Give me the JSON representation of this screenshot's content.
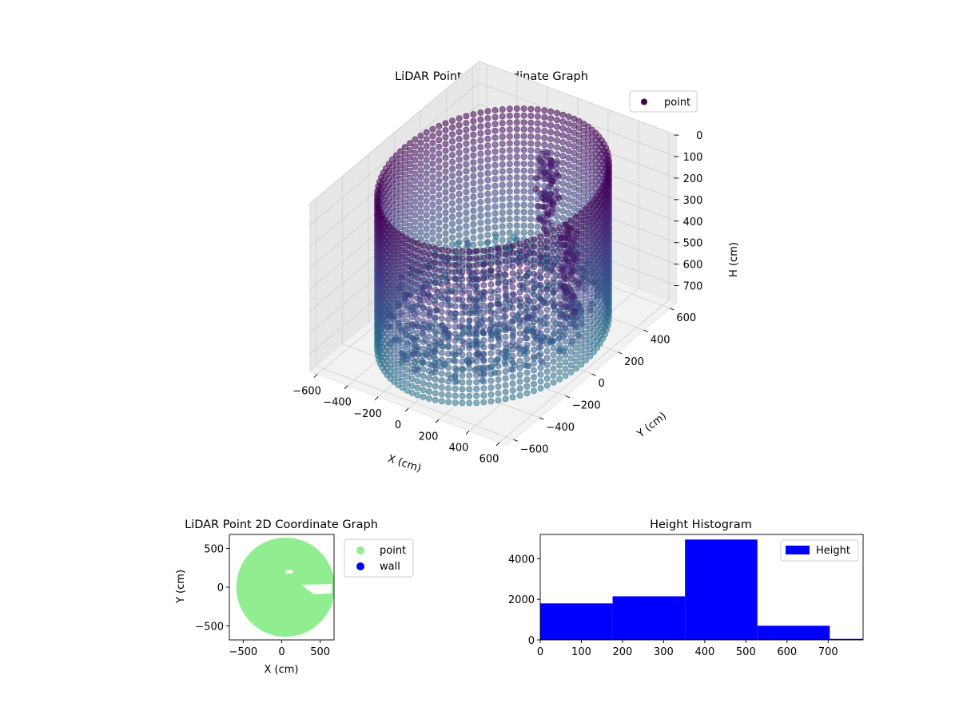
{
  "chart_data": [
    {
      "type": "scatter3d",
      "title": "LiDAR Point 3D Coordinate Graph",
      "xlabel": "X (cm)",
      "ylabel": "Y (cm)",
      "zlabel": "H (cm)",
      "x_ticks": [
        -600,
        -400,
        -200,
        0,
        200,
        400,
        600
      ],
      "y_ticks": [
        -600,
        -400,
        -200,
        0,
        200,
        400,
        600
      ],
      "z_ticks": [
        0,
        100,
        200,
        300,
        400,
        500,
        600,
        700
      ],
      "xlim": [
        -650,
        650
      ],
      "ylim": [
        -650,
        650
      ],
      "zlim": [
        0,
        780
      ],
      "z_inverted": true,
      "grid": true,
      "legend": {
        "placement": "upper-right",
        "entries": [
          {
            "label": "point",
            "color": "#440154"
          }
        ]
      },
      "colormap": "viridis",
      "shape": {
        "wall_radius": 580,
        "wall_height_range": [
          50,
          780
        ],
        "floor_height": 700,
        "objects": [
          {
            "x": 100,
            "y": 300,
            "z_range": [
              60,
              400
            ]
          },
          {
            "x": 430,
            "y": 80,
            "z_range": [
              200,
              650
            ]
          }
        ]
      }
    },
    {
      "type": "scatter",
      "title": "LiDAR Point 2D Coordinate Graph",
      "xlabel": "X (cm)",
      "ylabel": "Y (cm)",
      "x_ticks": [
        -500,
        0,
        500
      ],
      "y_ticks": [
        -500,
        0,
        500
      ],
      "xlim": [
        -680,
        680
      ],
      "ylim": [
        -680,
        680
      ],
      "legend": {
        "placement": "outside-right",
        "entries": [
          {
            "label": "point",
            "color": "#90ee90"
          },
          {
            "label": "wall",
            "color": "#0000ff"
          }
        ]
      },
      "shape": {
        "disc_center": [
          50,
          0
        ],
        "disc_radius": 640
      }
    },
    {
      "type": "bar",
      "title": "Height Histogram",
      "x_ticks": [
        0,
        100,
        200,
        300,
        400,
        500,
        600,
        700
      ],
      "y_ticks": [
        0,
        2000,
        4000
      ],
      "xlim": [
        0,
        785
      ],
      "ylim": [
        0,
        5200
      ],
      "bins": [
        {
          "x0": 0,
          "x1": 176,
          "count": 1800
        },
        {
          "x0": 176,
          "x1": 352,
          "count": 2150
        },
        {
          "x0": 352,
          "x1": 528,
          "count": 4950
        },
        {
          "x0": 528,
          "x1": 704,
          "count": 700
        },
        {
          "x0": 704,
          "x1": 785,
          "count": 50
        }
      ],
      "color": "#0000ff",
      "legend": {
        "placement": "upper-right",
        "entries": [
          {
            "label": "Height",
            "color": "#0000ff"
          }
        ]
      }
    }
  ]
}
